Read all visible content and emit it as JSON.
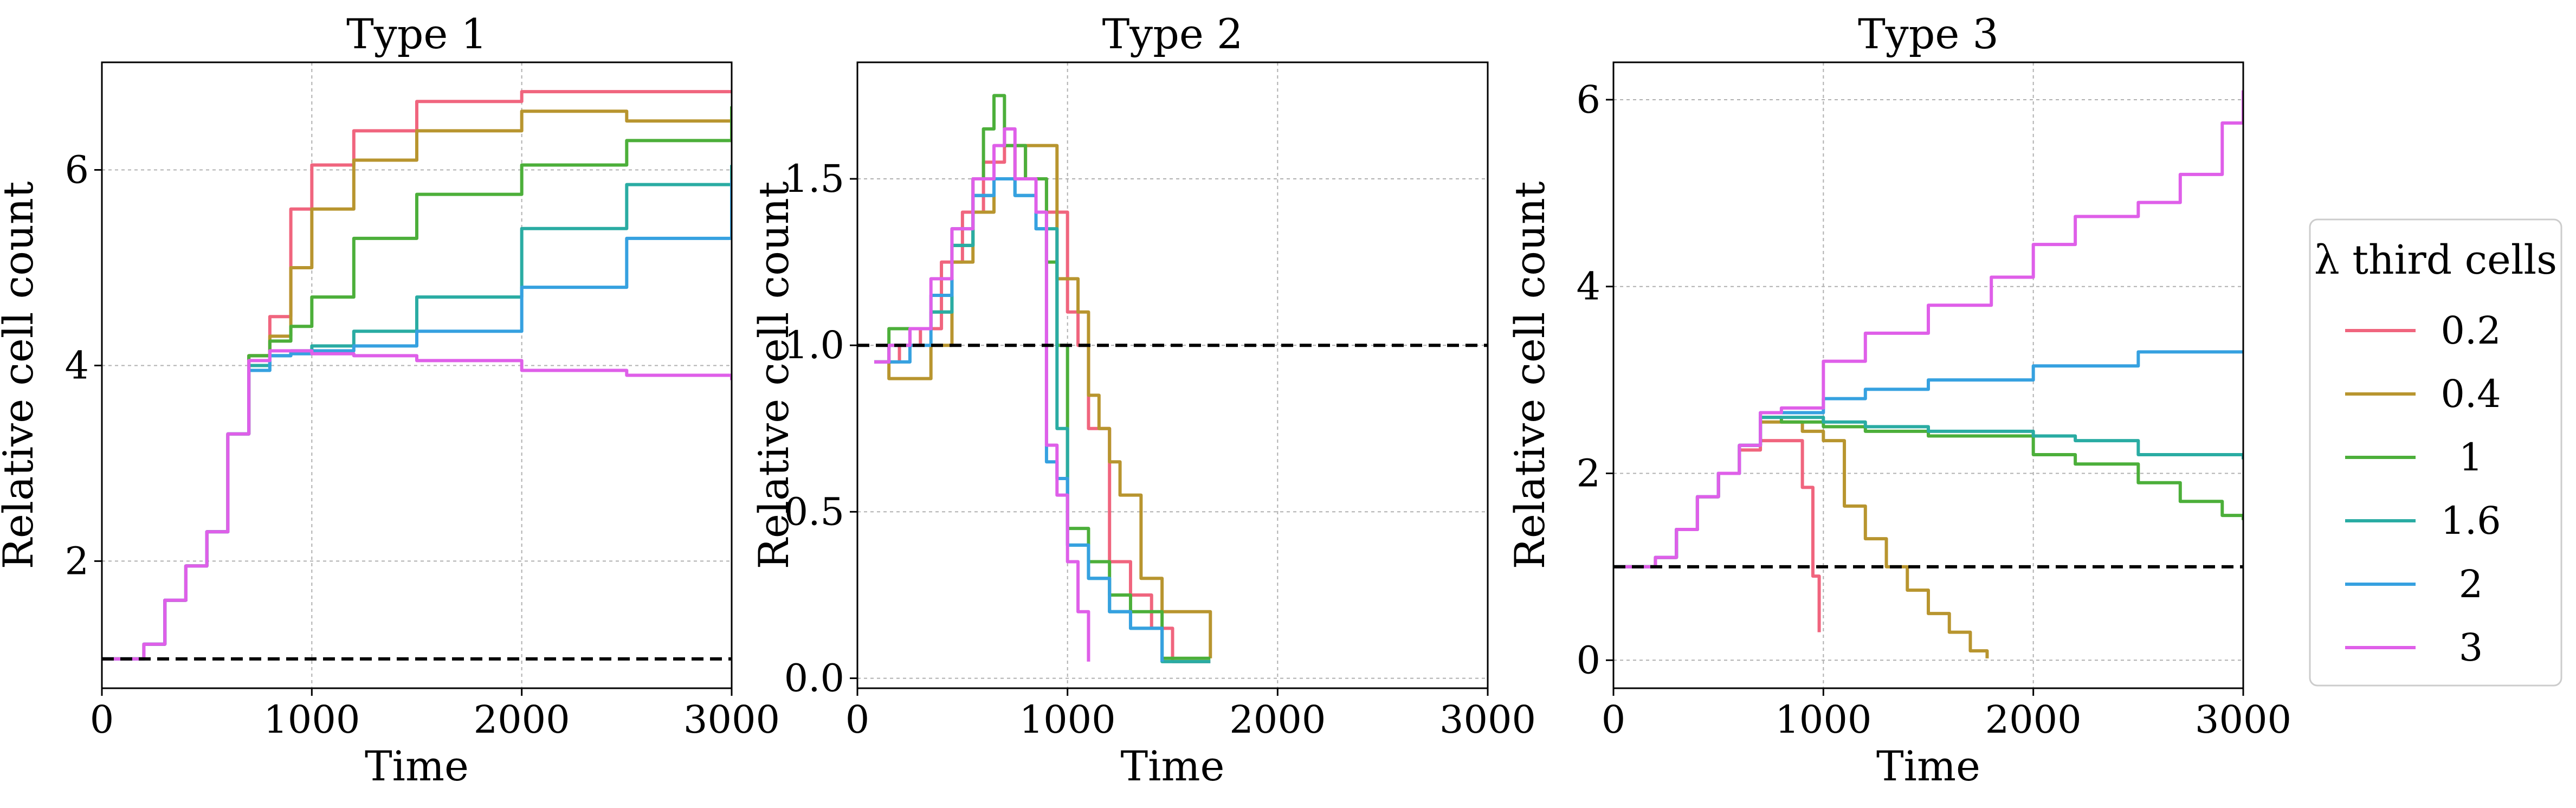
{
  "chart_data": [
    {
      "type": "line",
      "title": "Type 1",
      "xlabel": "Time",
      "ylabel": "Relative cell count",
      "xlim": [
        0,
        3000
      ],
      "ylim": [
        0.7,
        7.1
      ],
      "x_ticks": [
        0,
        1000,
        2000,
        3000
      ],
      "x_tick_labels": [
        "0",
        "1000",
        "2000",
        "3000"
      ],
      "y_ticks": [
        2,
        4,
        6
      ],
      "y_tick_labels": [
        "2",
        "4",
        "6"
      ],
      "grid": true,
      "reference_line": 1.0,
      "series": [
        {
          "name": "0.2",
          "color": "#f0657e",
          "x": [
            0,
            100,
            200,
            300,
            400,
            500,
            600,
            700,
            800,
            900,
            1000,
            1200,
            1500,
            2000,
            2500,
            3000
          ],
          "y": [
            1.0,
            1.0,
            1.15,
            1.6,
            1.95,
            2.3,
            3.3,
            4.1,
            4.5,
            5.6,
            6.05,
            6.4,
            6.7,
            6.8,
            6.8,
            6.8
          ]
        },
        {
          "name": "0.4",
          "color": "#b8952f",
          "x": [
            0,
            100,
            200,
            300,
            400,
            500,
            600,
            700,
            800,
            900,
            1000,
            1200,
            1500,
            2000,
            2500,
            3000
          ],
          "y": [
            1.0,
            1.0,
            1.15,
            1.6,
            1.95,
            2.3,
            3.3,
            4.1,
            4.3,
            5.0,
            5.6,
            6.1,
            6.4,
            6.6,
            6.5,
            6.4
          ]
        },
        {
          "name": "1",
          "color": "#4caf3a",
          "x": [
            0,
            100,
            200,
            300,
            400,
            500,
            600,
            700,
            800,
            900,
            1000,
            1200,
            1500,
            2000,
            2500,
            3000
          ],
          "y": [
            1.0,
            1.0,
            1.15,
            1.6,
            1.95,
            2.3,
            3.3,
            4.1,
            4.25,
            4.4,
            4.7,
            5.3,
            5.75,
            6.05,
            6.3,
            6.65
          ]
        },
        {
          "name": "1.6",
          "color": "#2aaca3",
          "x": [
            0,
            100,
            200,
            300,
            400,
            500,
            600,
            700,
            800,
            900,
            1000,
            1200,
            1500,
            2000,
            2500,
            3000
          ],
          "y": [
            1.0,
            1.0,
            1.15,
            1.6,
            1.95,
            2.3,
            3.3,
            4.0,
            4.1,
            4.15,
            4.2,
            4.35,
            4.7,
            5.4,
            5.85,
            6.05
          ]
        },
        {
          "name": "2",
          "color": "#36a1e0",
          "x": [
            0,
            100,
            200,
            300,
            400,
            500,
            600,
            700,
            800,
            900,
            1000,
            1200,
            1500,
            2000,
            2500,
            3000
          ],
          "y": [
            1.0,
            1.0,
            1.15,
            1.6,
            1.95,
            2.3,
            3.3,
            3.95,
            4.1,
            4.12,
            4.15,
            4.2,
            4.35,
            4.8,
            5.3,
            5.9
          ]
        },
        {
          "name": "3",
          "color": "#df5fe9",
          "x": [
            0,
            100,
            200,
            300,
            400,
            500,
            600,
            700,
            800,
            900,
            1000,
            1200,
            1500,
            2000,
            2500,
            3000
          ],
          "y": [
            1.0,
            1.0,
            1.15,
            1.6,
            1.95,
            2.3,
            3.3,
            4.05,
            4.15,
            4.15,
            4.12,
            4.1,
            4.05,
            3.95,
            3.9,
            3.85
          ]
        }
      ]
    },
    {
      "type": "line",
      "title": "Type 2",
      "xlabel": "Time",
      "ylabel": "Relative cell count",
      "xlim": [
        0,
        3000
      ],
      "ylim": [
        -0.03,
        1.85
      ],
      "x_ticks": [
        0,
        1000,
        2000,
        3000
      ],
      "x_tick_labels": [
        "0",
        "1000",
        "2000",
        "3000"
      ],
      "y_ticks": [
        0.0,
        0.5,
        1.0,
        1.5
      ],
      "y_tick_labels": [
        "0.0",
        "0.5",
        "1.0",
        "1.5"
      ],
      "grid": true,
      "reference_line": 1.0,
      "series": [
        {
          "name": "0.2",
          "color": "#f0657e",
          "x": [
            80,
            200,
            300,
            400,
            500,
            600,
            700,
            800,
            900,
            1000,
            1050,
            1100,
            1200,
            1300,
            1400,
            1500,
            1680
          ],
          "y": [
            0.95,
            1.0,
            1.05,
            1.25,
            1.4,
            1.55,
            1.6,
            1.5,
            1.4,
            1.1,
            1.0,
            0.75,
            0.35,
            0.25,
            0.15,
            0.05,
            0.05
          ]
        },
        {
          "name": "0.4",
          "color": "#b8952f",
          "x": [
            80,
            150,
            250,
            350,
            450,
            550,
            650,
            750,
            850,
            950,
            1050,
            1100,
            1150,
            1200,
            1250,
            1350,
            1450,
            1680
          ],
          "y": [
            0.95,
            0.9,
            0.9,
            1.0,
            1.25,
            1.4,
            1.5,
            1.6,
            1.6,
            1.2,
            1.1,
            0.85,
            0.75,
            0.65,
            0.55,
            0.3,
            0.2,
            0.06
          ]
        },
        {
          "name": "1",
          "color": "#4caf3a",
          "x": [
            80,
            150,
            250,
            350,
            450,
            550,
            600,
            650,
            700,
            800,
            900,
            950,
            1000,
            1100,
            1200,
            1300,
            1450,
            1680
          ],
          "y": [
            0.95,
            1.05,
            1.05,
            1.1,
            1.3,
            1.5,
            1.65,
            1.75,
            1.6,
            1.5,
            1.25,
            1.0,
            0.45,
            0.35,
            0.25,
            0.2,
            0.06,
            0.06
          ]
        },
        {
          "name": "1.6",
          "color": "#2aaca3",
          "x": [
            80,
            150,
            250,
            350,
            450,
            550,
            650,
            750,
            850,
            950,
            1000,
            1100,
            1200,
            1300,
            1450,
            1680
          ],
          "y": [
            0.95,
            1.0,
            1.05,
            1.1,
            1.3,
            1.45,
            1.5,
            1.45,
            1.35,
            0.75,
            0.4,
            0.3,
            0.2,
            0.15,
            0.05,
            0.05
          ]
        },
        {
          "name": "2",
          "color": "#36a1e0",
          "x": [
            80,
            150,
            250,
            350,
            450,
            550,
            650,
            750,
            850,
            900,
            950,
            1000,
            1100,
            1200,
            1300,
            1450
          ],
          "y": [
            0.95,
            0.95,
            1.0,
            1.15,
            1.35,
            1.45,
            1.5,
            1.45,
            1.35,
            0.65,
            0.6,
            0.4,
            0.3,
            0.2,
            0.15,
            0.05
          ]
        },
        {
          "name": "3",
          "color": "#df5fe9",
          "x": [
            80,
            150,
            250,
            350,
            450,
            550,
            650,
            700,
            750,
            850,
            900,
            950,
            1000,
            1050,
            1100
          ],
          "y": [
            0.95,
            1.0,
            1.05,
            1.2,
            1.35,
            1.5,
            1.6,
            1.65,
            1.5,
            1.4,
            0.7,
            0.55,
            0.35,
            0.2,
            0.05
          ]
        }
      ]
    },
    {
      "type": "line",
      "title": "Type 3",
      "xlabel": "Time",
      "ylabel": "Relative cell count",
      "xlim": [
        0,
        3000
      ],
      "ylim": [
        -0.3,
        6.4
      ],
      "x_ticks": [
        0,
        1000,
        2000,
        3000
      ],
      "x_tick_labels": [
        "0",
        "1000",
        "2000",
        "3000"
      ],
      "y_ticks": [
        0,
        2,
        4,
        6
      ],
      "y_tick_labels": [
        "0",
        "2",
        "4",
        "6"
      ],
      "grid": true,
      "reference_line": 1.0,
      "series": [
        {
          "name": "0.2",
          "color": "#f0657e",
          "x": [
            0,
            100,
            200,
            300,
            400,
            500,
            600,
            700,
            800,
            900,
            950,
            980
          ],
          "y": [
            1.0,
            1.0,
            1.1,
            1.4,
            1.75,
            2.0,
            2.25,
            2.35,
            2.35,
            1.85,
            0.9,
            0.3
          ]
        },
        {
          "name": "0.4",
          "color": "#b8952f",
          "x": [
            0,
            100,
            200,
            300,
            400,
            500,
            600,
            700,
            800,
            900,
            1000,
            1100,
            1200,
            1300,
            1400,
            1500,
            1600,
            1700,
            1780
          ],
          "y": [
            1.0,
            1.0,
            1.1,
            1.4,
            1.75,
            2.0,
            2.3,
            2.55,
            2.55,
            2.45,
            2.35,
            1.65,
            1.3,
            1.0,
            0.75,
            0.5,
            0.3,
            0.1,
            0.02
          ]
        },
        {
          "name": "1",
          "color": "#4caf3a",
          "x": [
            0,
            100,
            200,
            300,
            400,
            500,
            600,
            700,
            800,
            1000,
            1200,
            1500,
            2000,
            2200,
            2500,
            2700,
            2900,
            3000
          ],
          "y": [
            1.0,
            1.0,
            1.1,
            1.4,
            1.75,
            2.0,
            2.3,
            2.6,
            2.55,
            2.5,
            2.45,
            2.4,
            2.2,
            2.1,
            1.9,
            1.7,
            1.55,
            1.5
          ]
        },
        {
          "name": "1.6",
          "color": "#2aaca3",
          "x": [
            0,
            100,
            200,
            300,
            400,
            500,
            600,
            700,
            800,
            1000,
            1200,
            1500,
            2000,
            2200,
            2500,
            3000
          ],
          "y": [
            1.0,
            1.0,
            1.1,
            1.4,
            1.75,
            2.0,
            2.3,
            2.6,
            2.6,
            2.55,
            2.5,
            2.45,
            2.4,
            2.35,
            2.2,
            2.15
          ]
        },
        {
          "name": "2",
          "color": "#36a1e0",
          "x": [
            0,
            100,
            200,
            300,
            400,
            500,
            600,
            700,
            800,
            1000,
            1200,
            1500,
            2000,
            2500,
            3000
          ],
          "y": [
            1.0,
            1.0,
            1.1,
            1.4,
            1.75,
            2.0,
            2.3,
            2.65,
            2.65,
            2.8,
            2.9,
            3.0,
            3.15,
            3.3,
            3.3
          ]
        },
        {
          "name": "3",
          "color": "#df5fe9",
          "x": [
            0,
            100,
            200,
            300,
            400,
            500,
            600,
            700,
            800,
            1000,
            1200,
            1500,
            1800,
            2000,
            2200,
            2500,
            2700,
            2900,
            3000
          ],
          "y": [
            1.0,
            1.0,
            1.1,
            1.4,
            1.75,
            2.0,
            2.3,
            2.65,
            2.7,
            3.2,
            3.5,
            3.8,
            4.1,
            4.45,
            4.75,
            4.9,
            5.2,
            5.75,
            6.1
          ]
        }
      ]
    }
  ],
  "legend": {
    "title": "λ third cells",
    "position": "right",
    "entries": [
      {
        "label": "0.2",
        "color": "#f0657e"
      },
      {
        "label": "0.4",
        "color": "#b8952f"
      },
      {
        "label": "1",
        "color": "#4caf3a"
      },
      {
        "label": "1.6",
        "color": "#2aaca3"
      },
      {
        "label": "2",
        "color": "#36a1e0"
      },
      {
        "label": "3",
        "color": "#df5fe9"
      }
    ]
  },
  "reference_line_color": "#000000"
}
